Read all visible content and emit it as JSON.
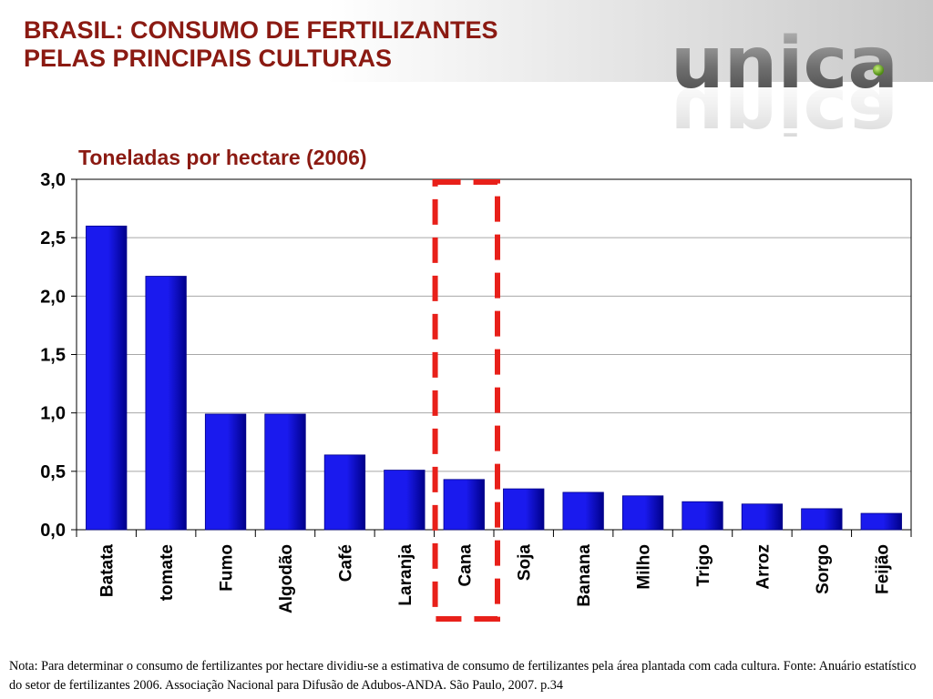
{
  "header": {
    "title_line1": "BRASIL: CONSUMO DE FERTILIZANTES",
    "title_line2": "PELAS PRINCIPAIS CULTURAS"
  },
  "logo": {
    "text": "unica",
    "icon": "unica-logo"
  },
  "colors": {
    "title": "#8b1a12",
    "bar": "#1a1aee",
    "bar_dark": "#00008a",
    "highlight": "#e8201a"
  },
  "chart_data": {
    "type": "bar",
    "title": "Toneladas por hectare (2006)",
    "categories": [
      "Batata",
      "tomate",
      "Fumo",
      "Algodão",
      "Café",
      "Laranja",
      "Cana",
      "Soja",
      "Banana",
      "Milho",
      "Trigo",
      "Arroz",
      "Sorgo",
      "Feijão"
    ],
    "values": [
      2.6,
      2.17,
      0.99,
      0.99,
      0.64,
      0.51,
      0.43,
      0.35,
      0.32,
      0.29,
      0.24,
      0.22,
      0.18,
      0.14
    ],
    "yticks": [
      "0,0",
      "0,5",
      "1,0",
      "1,5",
      "2,0",
      "2,5",
      "3,0"
    ],
    "ylim": [
      0,
      3
    ],
    "grid": true,
    "highlighted_category": "Cana"
  },
  "footnote": "Nota: Para determinar o consumo de fertilizantes por hectare dividiu-se a estimativa de consumo de fertilizantes pela área plantada com cada cultura. Fonte: Anuário estatístico do setor de fertilizantes 2006. Associação Nacional para Difusão de Adubos-ANDA. São Paulo, 2007. p.34"
}
